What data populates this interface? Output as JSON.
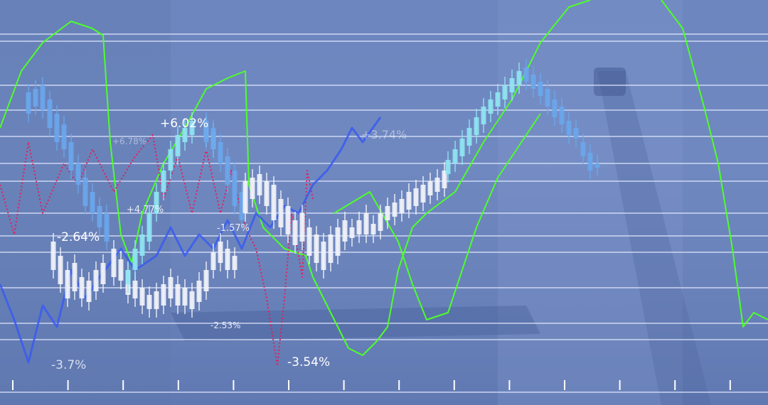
{
  "chart_data": {
    "type": "line",
    "title": "",
    "xlabel": "",
    "ylabel": "",
    "xlim": [
      0,
      108
    ],
    "ylim": [
      0,
      57
    ],
    "grid": "horizontal",
    "colors": {
      "green": "#4dff2a",
      "red": "#e0205a",
      "blue": "#3a5cf0",
      "candle_white": "#f2f4fa",
      "candle_cyan": "#8fe6f2",
      "candle_blue": "#6aa6ec",
      "grid": "#e6ecff",
      "background": "#6d86bf"
    },
    "series": [
      {
        "style": "green-line",
        "points": [
          [
            0,
            39
          ],
          [
            3,
            47
          ],
          [
            6,
            51
          ],
          [
            10,
            54
          ],
          [
            13,
            53
          ],
          [
            14.5,
            52
          ],
          [
            15.5,
            37
          ],
          [
            17,
            24
          ],
          [
            18.5,
            20
          ],
          [
            20,
            27
          ],
          [
            23,
            34
          ],
          [
            26,
            39
          ],
          [
            29,
            44.5
          ],
          [
            32,
            46
          ],
          [
            34.5,
            47
          ],
          [
            35,
            31
          ],
          [
            37,
            25
          ],
          [
            40,
            22
          ],
          [
            43,
            21
          ],
          [
            44,
            18
          ],
          [
            46,
            14
          ],
          [
            49,
            8
          ],
          [
            51,
            7
          ],
          [
            53,
            9
          ],
          [
            54.5,
            11
          ],
          [
            56,
            19
          ],
          [
            58,
            25
          ],
          [
            60,
            27
          ],
          [
            64,
            30
          ],
          [
            68,
            37
          ],
          [
            72,
            43
          ],
          [
            76,
            51
          ],
          [
            80,
            56
          ],
          [
            83,
            57
          ]
        ]
      },
      {
        "style": "green-line",
        "points": [
          [
            93,
            57
          ],
          [
            96,
            53
          ],
          [
            99,
            42
          ],
          [
            101,
            34
          ],
          [
            103,
            22
          ],
          [
            104.5,
            11
          ],
          [
            106,
            13
          ],
          [
            108,
            12
          ]
        ]
      },
      {
        "style": "green-line",
        "points": [
          [
            47,
            27
          ],
          [
            52,
            30
          ],
          [
            56,
            23
          ],
          [
            58,
            17
          ],
          [
            60,
            12
          ],
          [
            63,
            13
          ],
          [
            67,
            25
          ],
          [
            70,
            32
          ],
          [
            74,
            38
          ],
          [
            76,
            41
          ]
        ]
      },
      {
        "style": "red-dotted",
        "points": [
          [
            0,
            31
          ],
          [
            2,
            24
          ],
          [
            4,
            37
          ],
          [
            6,
            27
          ],
          [
            9,
            34
          ],
          [
            11,
            31
          ],
          [
            13,
            36
          ],
          [
            16,
            30
          ],
          [
            19,
            35
          ],
          [
            21.5,
            38
          ],
          [
            23,
            29
          ],
          [
            25,
            35
          ],
          [
            27,
            27
          ],
          [
            29,
            36
          ],
          [
            31,
            27
          ],
          [
            32.5,
            33
          ],
          [
            34.5,
            25
          ],
          [
            36,
            22
          ],
          [
            37.5,
            15
          ],
          [
            39,
            5.5
          ],
          [
            40,
            15
          ],
          [
            41,
            27
          ],
          [
            42.5,
            18
          ],
          [
            43.2,
            33
          ],
          [
            44,
            29
          ]
        ]
      },
      {
        "style": "blue-line",
        "points": [
          [
            0,
            17
          ],
          [
            2,
            12
          ],
          [
            4,
            6
          ],
          [
            6,
            14
          ],
          [
            8,
            11
          ],
          [
            10,
            19
          ],
          [
            12,
            15
          ],
          [
            14,
            18
          ],
          [
            17,
            22
          ],
          [
            19,
            19
          ],
          [
            22,
            21
          ],
          [
            24,
            25
          ],
          [
            26,
            21
          ],
          [
            28,
            24
          ],
          [
            30,
            22
          ],
          [
            32,
            26
          ],
          [
            34,
            22
          ],
          [
            36,
            27
          ],
          [
            38,
            25
          ],
          [
            40,
            28
          ],
          [
            42,
            27
          ],
          [
            44,
            31
          ],
          [
            46,
            33
          ],
          [
            48,
            36
          ],
          [
            49.5,
            39
          ],
          [
            51,
            37
          ],
          [
            53.5,
            40.5
          ]
        ]
      }
    ],
    "candles": [
      {
        "color": "candle_blue",
        "bars": [
          [
            4,
            44,
            41
          ],
          [
            5,
            44.5,
            42
          ],
          [
            6,
            45,
            41.5
          ],
          [
            7,
            43,
            39
          ],
          [
            8,
            41,
            37
          ],
          [
            9,
            39.5,
            36
          ],
          [
            10,
            37,
            33
          ],
          [
            11,
            34,
            31
          ],
          [
            12,
            32,
            28
          ],
          [
            13,
            30,
            27
          ],
          [
            14,
            28,
            25
          ],
          [
            15,
            27,
            23
          ]
        ]
      },
      {
        "color": "candle_white",
        "bars": [
          [
            7.5,
            23,
            19
          ],
          [
            8.5,
            21,
            17
          ],
          [
            9.5,
            19,
            15
          ],
          [
            10.5,
            20,
            16
          ],
          [
            11.5,
            18,
            15
          ],
          [
            12.5,
            17.5,
            14.5
          ],
          [
            13.5,
            19,
            16
          ],
          [
            14.5,
            20,
            17
          ],
          [
            16,
            22,
            18
          ],
          [
            17,
            20.5,
            17.5
          ],
          [
            18,
            19,
            15.5
          ],
          [
            19,
            17.5,
            15
          ],
          [
            20,
            16.5,
            14
          ],
          [
            21,
            15.5,
            13.5
          ],
          [
            22,
            16,
            13.5
          ],
          [
            23,
            17,
            14
          ],
          [
            24,
            18,
            15
          ],
          [
            25,
            17,
            14
          ],
          [
            26,
            16.5,
            14
          ],
          [
            27,
            16,
            13.5
          ],
          [
            28,
            17.5,
            14.5
          ],
          [
            29,
            19,
            16
          ],
          [
            30,
            21.5,
            19
          ],
          [
            31,
            23,
            20
          ],
          [
            32,
            22,
            19
          ],
          [
            33,
            21,
            19
          ]
        ]
      },
      {
        "color": "candle_cyan",
        "bars": [
          [
            18,
            19,
            17
          ],
          [
            19,
            22,
            19
          ],
          [
            20,
            24,
            21
          ],
          [
            21,
            27,
            23
          ],
          [
            22,
            30,
            27
          ],
          [
            23,
            33,
            30
          ],
          [
            24,
            36,
            33
          ],
          [
            25,
            38,
            35
          ],
          [
            26,
            39,
            37
          ],
          [
            27,
            40,
            38
          ],
          [
            29,
            39.5,
            37.5
          ],
          [
            30,
            38.5,
            36
          ]
        ]
      },
      {
        "color": "candle_blue",
        "bars": [
          [
            29,
            40,
            37
          ],
          [
            30,
            39,
            36
          ],
          [
            31,
            37,
            34
          ],
          [
            32,
            35,
            31
          ],
          [
            33,
            33,
            28
          ],
          [
            34,
            30,
            26
          ]
        ]
      },
      {
        "color": "candle_white",
        "bars": [
          [
            34.5,
            31.5,
            27
          ],
          [
            35.5,
            32,
            29
          ],
          [
            36.5,
            32.5,
            29.5
          ],
          [
            37.5,
            31.5,
            28
          ],
          [
            38.5,
            31,
            26
          ],
          [
            39.5,
            29,
            25
          ],
          [
            40.5,
            28,
            24
          ],
          [
            41.5,
            26,
            22.5
          ],
          [
            42.5,
            27,
            23
          ],
          [
            43.5,
            25,
            21
          ],
          [
            44.5,
            24,
            20
          ],
          [
            45.5,
            23,
            19
          ],
          [
            46.5,
            24,
            20
          ],
          [
            47.5,
            25,
            21
          ],
          [
            48.5,
            26,
            23
          ],
          [
            49.5,
            25,
            23.5
          ]
        ]
      },
      {
        "color": "candle_white",
        "bars": [
          [
            50.5,
            26,
            24
          ],
          [
            51.5,
            27,
            24
          ],
          [
            52.5,
            25.5,
            24
          ],
          [
            53.5,
            27,
            24.5
          ],
          [
            54.5,
            28,
            26
          ],
          [
            55.5,
            28.5,
            26.5
          ],
          [
            56.5,
            29,
            27
          ],
          [
            57.5,
            30,
            27.5
          ],
          [
            58.5,
            30.5,
            28
          ],
          [
            59.5,
            31,
            28.5
          ],
          [
            60.5,
            31.5,
            29.5
          ],
          [
            61.5,
            32,
            30
          ],
          [
            62.5,
            33,
            30.5
          ]
        ]
      },
      {
        "color": "candle_cyan",
        "bars": [
          [
            63,
            34.5,
            32.5
          ],
          [
            64,
            36,
            34
          ],
          [
            65,
            37.5,
            35
          ],
          [
            66,
            39,
            36.5
          ],
          [
            67,
            40.5,
            38
          ],
          [
            68,
            42,
            39.5
          ],
          [
            69,
            43,
            41
          ],
          [
            70,
            44,
            42
          ],
          [
            71,
            45,
            43
          ],
          [
            72,
            46,
            44
          ],
          [
            73,
            47,
            45
          ]
        ]
      },
      {
        "color": "candle_blue",
        "bars": [
          [
            74,
            47.5,
            45.5
          ],
          [
            75,
            46.5,
            44.5
          ],
          [
            76,
            45.5,
            43.5
          ],
          [
            77,
            44.5,
            42
          ],
          [
            78,
            43,
            40.5
          ],
          [
            79,
            42,
            39.5
          ],
          [
            80,
            40,
            38
          ],
          [
            81,
            39,
            37.5
          ],
          [
            82,
            37,
            35
          ],
          [
            83,
            35.5,
            33
          ],
          [
            84,
            34,
            33.4
          ]
        ]
      }
    ],
    "annotations": {
      "a1": "+6.02%",
      "a2": "+6.78%",
      "a3": "+4.77%",
      "a4": "-2.64%",
      "a5": "-1.57%",
      "a6": "+3.74%",
      "a7": "-2.53%",
      "a8": "-3.54%",
      "a9": "-3.7%"
    }
  }
}
